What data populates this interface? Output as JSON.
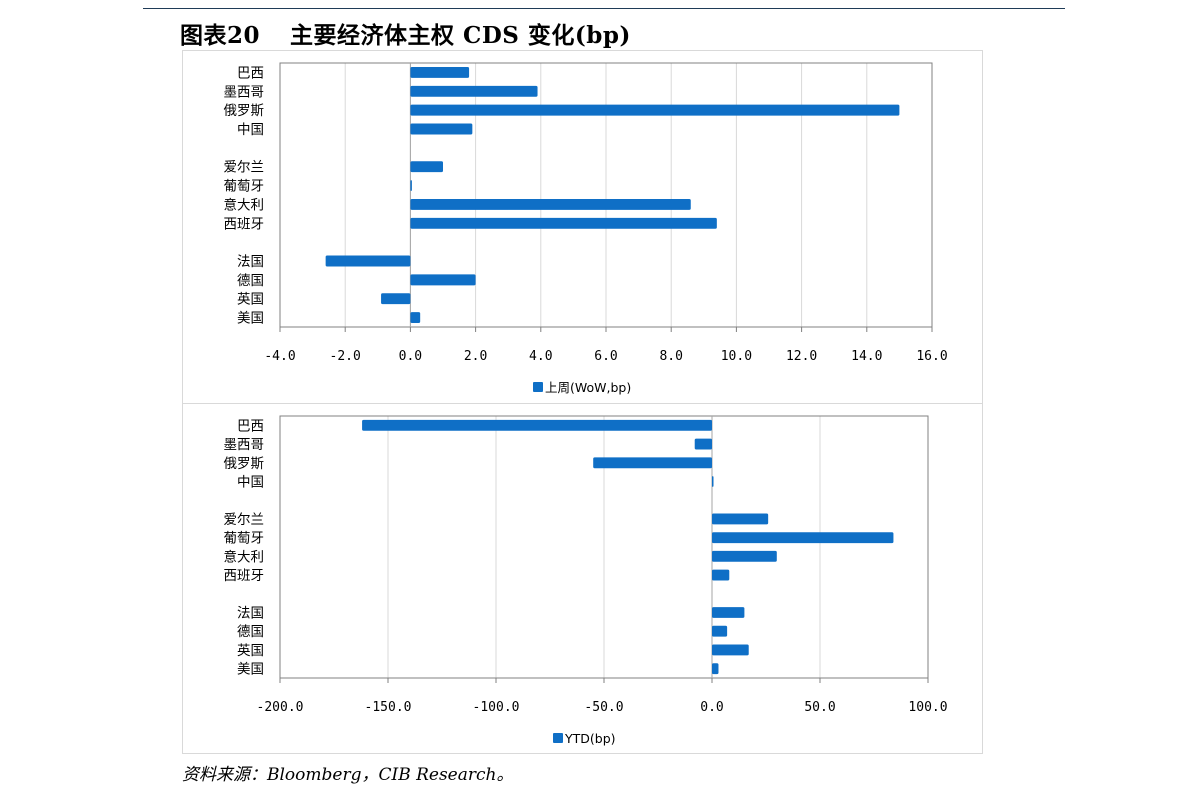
{
  "title": {
    "figure_no": "图表20",
    "text": "主要经济体主权 CDS 变化(bp)"
  },
  "source_note": "资料来源：Bloomberg，CIB Research。",
  "colors": {
    "bar": "#0F6FC6",
    "axis": "#808080",
    "grid": "#d9d9d9"
  },
  "chart_data": [
    {
      "type": "bar",
      "orientation": "horizontal",
      "categories": [
        "巴西",
        "墨西哥",
        "俄罗斯",
        "中国",
        "",
        "爱尔兰",
        "葡萄牙",
        "意大利",
        "西班牙",
        "",
        "法国",
        "德国",
        "英国",
        "美国"
      ],
      "series": [
        {
          "name": "上周(WoW,bp)",
          "values": [
            1.8,
            3.9,
            15.0,
            1.9,
            null,
            1.0,
            0.0,
            8.6,
            9.4,
            null,
            -2.6,
            2.0,
            -0.9,
            0.3
          ]
        }
      ],
      "xlim": [
        -4,
        16
      ],
      "ticks": [
        -4,
        -2,
        0,
        2,
        4,
        6,
        8,
        10,
        12,
        14,
        16
      ],
      "tick_labels": [
        "-4.0",
        "-2.0",
        "0.0",
        "2.0",
        "4.0",
        "6.0",
        "8.0",
        "10.0",
        "12.0",
        "14.0",
        "16.0"
      ],
      "grid": true,
      "legend": "bottom"
    },
    {
      "type": "bar",
      "orientation": "horizontal",
      "categories": [
        "巴西",
        "墨西哥",
        "俄罗斯",
        "中国",
        "",
        "爱尔兰",
        "葡萄牙",
        "意大利",
        "西班牙",
        "",
        "法国",
        "德国",
        "英国",
        "美国"
      ],
      "series": [
        {
          "name": "YTD(bp)",
          "values": [
            -162,
            -8,
            -55,
            0.5,
            null,
            26,
            84,
            30,
            8,
            null,
            15,
            7,
            17,
            3
          ]
        }
      ],
      "xlim": [
        -200,
        100
      ],
      "ticks": [
        -200,
        -150,
        -100,
        -50,
        0,
        50,
        100
      ],
      "tick_labels": [
        "-200.0",
        "-150.0",
        "-100.0",
        "-50.0",
        "0.0",
        "50.0",
        "100.0"
      ],
      "grid": true,
      "legend": "bottom"
    }
  ]
}
